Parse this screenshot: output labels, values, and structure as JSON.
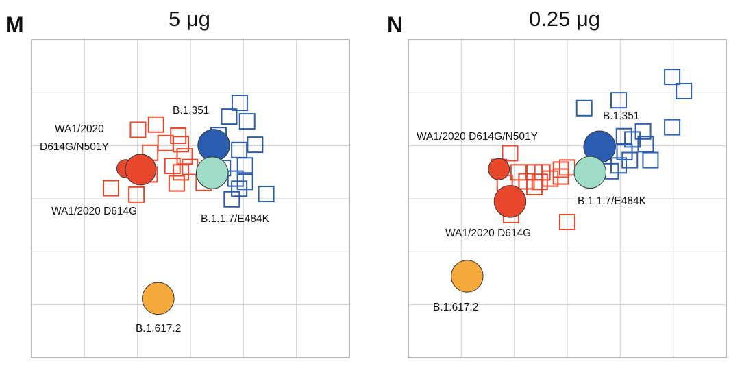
{
  "chart_data": [
    {
      "panel": "M",
      "type": "scatter",
      "title": "5 μg",
      "xlim": [
        0,
        6
      ],
      "ylim": [
        0,
        6
      ],
      "grid": true,
      "antigens": [
        {
          "label": "WA1/2020\nD614G/N501Y",
          "x": 1.78,
          "y": 3.57,
          "r": 0.17,
          "color": "#e8472b"
        },
        {
          "label": "WA1/2020 D614G",
          "x": 2.06,
          "y": 3.55,
          "r": 0.29,
          "color": "#e8472b"
        },
        {
          "label": "B.1.351",
          "x": 3.44,
          "y": 4.01,
          "r": 0.3,
          "color": "#2a5db0"
        },
        {
          "label": "B.1.1.7/E484K",
          "x": 3.41,
          "y": 3.49,
          "r": 0.3,
          "color": "#9fdcc7"
        },
        {
          "label": "B.1.617.2",
          "x": 2.39,
          "y": 1.12,
          "r": 0.3,
          "color": "#f6a93b"
        }
      ],
      "sera": [
        {
          "x": 2.35,
          "y": 4.4,
          "color": "#e8472b"
        },
        {
          "x": 2.77,
          "y": 4.19,
          "color": "#e8472b"
        },
        {
          "x": 2.01,
          "y": 4.3,
          "color": "#e8472b"
        },
        {
          "x": 2.53,
          "y": 4.05,
          "color": "#e8472b"
        },
        {
          "x": 2.82,
          "y": 4.03,
          "color": "#e8472b"
        },
        {
          "x": 2.24,
          "y": 3.87,
          "color": "#e8472b"
        },
        {
          "x": 2.89,
          "y": 3.8,
          "color": "#e8472b"
        },
        {
          "x": 2.66,
          "y": 3.62,
          "color": "#e8472b"
        },
        {
          "x": 2.99,
          "y": 3.6,
          "color": "#e8472b"
        },
        {
          "x": 2.82,
          "y": 3.5,
          "color": "#e8472b"
        },
        {
          "x": 2.23,
          "y": 3.46,
          "color": "#e8472b"
        },
        {
          "x": 2.74,
          "y": 3.29,
          "color": "#e8472b"
        },
        {
          "x": 3.25,
          "y": 3.3,
          "color": "#e8472b"
        },
        {
          "x": 1.5,
          "y": 3.2,
          "color": "#e8472b"
        },
        {
          "x": 1.98,
          "y": 3.08,
          "color": "#e8472b"
        },
        {
          "x": 3.93,
          "y": 4.81,
          "color": "#2a5db0"
        },
        {
          "x": 3.73,
          "y": 4.55,
          "color": "#2a5db0"
        },
        {
          "x": 4.07,
          "y": 4.46,
          "color": "#2a5db0"
        },
        {
          "x": 3.53,
          "y": 4.2,
          "color": "#2a5db0"
        },
        {
          "x": 4.22,
          "y": 4.02,
          "color": "#2a5db0"
        },
        {
          "x": 3.92,
          "y": 3.92,
          "color": "#2a5db0"
        },
        {
          "x": 4.03,
          "y": 3.63,
          "color": "#2a5db0"
        },
        {
          "x": 3.61,
          "y": 3.58,
          "color": "#2a5db0"
        },
        {
          "x": 3.85,
          "y": 3.38,
          "color": "#2a5db0"
        },
        {
          "x": 4.03,
          "y": 3.32,
          "color": "#2a5db0"
        },
        {
          "x": 3.92,
          "y": 3.19,
          "color": "#2a5db0"
        },
        {
          "x": 4.43,
          "y": 3.09,
          "color": "#2a5db0"
        },
        {
          "x": 3.78,
          "y": 2.99,
          "color": "#2a5db0"
        }
      ]
    },
    {
      "panel": "N",
      "type": "scatter",
      "title": "0.25 μg",
      "xlim": [
        0,
        6
      ],
      "ylim": [
        0,
        6
      ],
      "grid": true,
      "antigens": [
        {
          "label": "WA1/2020 D614G/N501Y",
          "x": 1.71,
          "y": 3.56,
          "r": 0.2,
          "color": "#e8472b"
        },
        {
          "label": "WA1/2020 D614G",
          "x": 1.92,
          "y": 2.95,
          "r": 0.3,
          "color": "#e8472b"
        },
        {
          "label": "B.1.351",
          "x": 3.61,
          "y": 3.98,
          "r": 0.3,
          "color": "#2a5db0"
        },
        {
          "label": "B.1.1.7/E484K",
          "x": 3.43,
          "y": 3.5,
          "r": 0.3,
          "color": "#9fdcc7"
        },
        {
          "label": "B.1.617.2",
          "x": 1.11,
          "y": 1.54,
          "r": 0.3,
          "color": "#f6a93b"
        }
      ],
      "sera": [
        {
          "x": 1.92,
          "y": 3.86,
          "color": "#e8472b"
        },
        {
          "x": 1.71,
          "y": 3.6,
          "color": "#e8472b"
        },
        {
          "x": 2.08,
          "y": 3.5,
          "color": "#e8472b"
        },
        {
          "x": 2.38,
          "y": 3.5,
          "color": "#e8472b"
        },
        {
          "x": 2.53,
          "y": 3.5,
          "color": "#e8472b"
        },
        {
          "x": 2.88,
          "y": 3.55,
          "color": "#e8472b"
        },
        {
          "x": 3.0,
          "y": 3.59,
          "color": "#e8472b"
        },
        {
          "x": 1.82,
          "y": 3.3,
          "color": "#e8472b"
        },
        {
          "x": 2.23,
          "y": 3.33,
          "color": "#e8472b"
        },
        {
          "x": 2.48,
          "y": 3.32,
          "color": "#e8472b"
        },
        {
          "x": 2.68,
          "y": 3.38,
          "color": "#e8472b"
        },
        {
          "x": 2.88,
          "y": 3.42,
          "color": "#e8472b"
        },
        {
          "x": 2.38,
          "y": 3.22,
          "color": "#e8472b"
        },
        {
          "x": 1.94,
          "y": 2.69,
          "color": "#e8472b"
        },
        {
          "x": 3.0,
          "y": 2.56,
          "color": "#e8472b"
        },
        {
          "x": 4.98,
          "y": 5.3,
          "color": "#2a5db0"
        },
        {
          "x": 5.2,
          "y": 5.03,
          "color": "#2a5db0"
        },
        {
          "x": 3.97,
          "y": 4.86,
          "color": "#2a5db0"
        },
        {
          "x": 3.32,
          "y": 4.71,
          "color": "#2a5db0"
        },
        {
          "x": 4.43,
          "y": 4.27,
          "color": "#2a5db0"
        },
        {
          "x": 4.98,
          "y": 4.35,
          "color": "#2a5db0"
        },
        {
          "x": 4.07,
          "y": 4.18,
          "color": "#2a5db0"
        },
        {
          "x": 4.23,
          "y": 4.12,
          "color": "#2a5db0"
        },
        {
          "x": 4.48,
          "y": 4.03,
          "color": "#2a5db0"
        },
        {
          "x": 4.08,
          "y": 3.88,
          "color": "#2a5db0"
        },
        {
          "x": 4.18,
          "y": 3.73,
          "color": "#2a5db0"
        },
        {
          "x": 4.57,
          "y": 3.73,
          "color": "#2a5db0"
        },
        {
          "x": 3.82,
          "y": 3.52,
          "color": "#2a5db0"
        },
        {
          "x": 3.97,
          "y": 3.63,
          "color": "#2a5db0"
        }
      ]
    }
  ]
}
